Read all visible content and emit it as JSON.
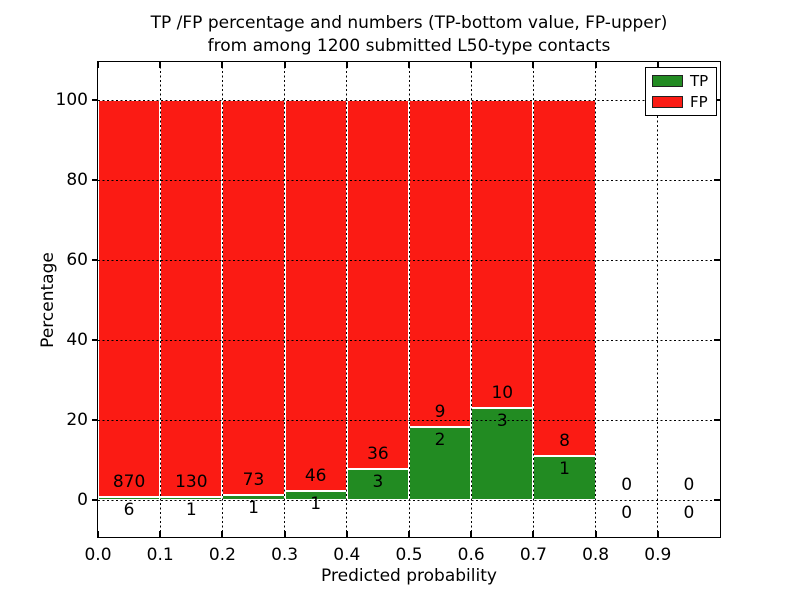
{
  "title": {
    "line1": "TP /FP percentage and numbers (TP-bottom value, FP-upper)",
    "line2": "from among 1200 submitted L50-type contacts"
  },
  "axes": {
    "ylabel": "Percentage",
    "xlabel": "Predicted probability",
    "x_tick_labels": [
      "0.0",
      "0.1",
      "0.2",
      "0.3",
      "0.4",
      "0.5",
      "0.6",
      "0.7",
      "0.8",
      "0.9"
    ],
    "y_tick_labels": [
      "0",
      "20",
      "40",
      "60",
      "80",
      "100"
    ],
    "y_tick_values": [
      0,
      20,
      40,
      60,
      80,
      100
    ],
    "x_tick_values": [
      0.0,
      0.1,
      0.2,
      0.3,
      0.4,
      0.5,
      0.6,
      0.7,
      0.8,
      0.9
    ]
  },
  "legend": {
    "items": [
      {
        "label": "TP",
        "color": "#228B22"
      },
      {
        "label": "FP",
        "color": "#FB1B14"
      }
    ]
  },
  "chart_data": {
    "type": "bar",
    "stacked": true,
    "title": "TP /FP percentage and numbers (TP-bottom value, FP-upper) from among 1200 submitted L50-type contacts",
    "xlabel": "Predicted probability",
    "ylabel": "Percentage",
    "xlim": [
      0.0,
      1.0
    ],
    "ylim": [
      -9.3,
      109.5
    ],
    "bin_width": 0.1,
    "total_contacts": 1200,
    "grid": "dotted",
    "legend_position": "upper right",
    "colors": {
      "tp": "#228B22",
      "fp": "#FB1B14"
    },
    "series_order_note": "TP is bottom segment, FP is upper segment; each bar is normalized to 100%",
    "bins": [
      {
        "x_start": 0.0,
        "tp": 6,
        "fp": 870
      },
      {
        "x_start": 0.1,
        "tp": 1,
        "fp": 130
      },
      {
        "x_start": 0.2,
        "tp": 1,
        "fp": 73
      },
      {
        "x_start": 0.3,
        "tp": 1,
        "fp": 46
      },
      {
        "x_start": 0.4,
        "tp": 3,
        "fp": 36
      },
      {
        "x_start": 0.5,
        "tp": 2,
        "fp": 9
      },
      {
        "x_start": 0.6,
        "tp": 3,
        "fp": 10
      },
      {
        "x_start": 0.7,
        "tp": 1,
        "fp": 8
      },
      {
        "x_start": 0.8,
        "tp": 0,
        "fp": 0
      },
      {
        "x_start": 0.9,
        "tp": 0,
        "fp": 0
      }
    ]
  }
}
